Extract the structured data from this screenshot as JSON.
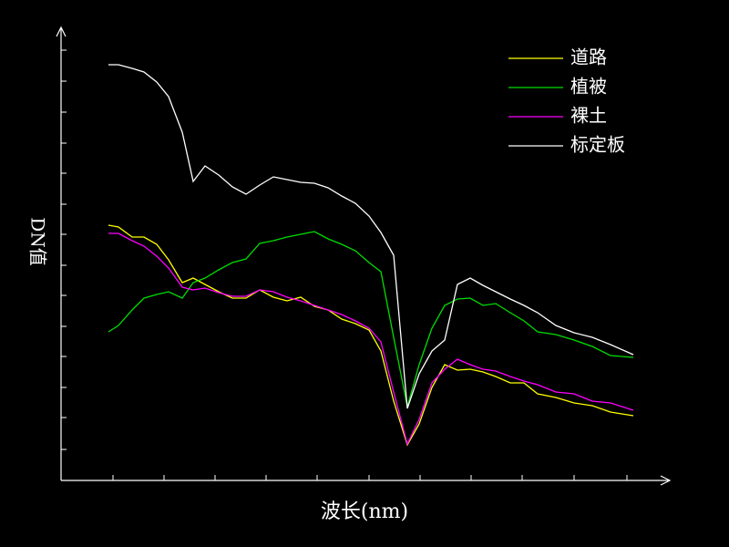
{
  "chart_data": {
    "type": "line",
    "x_label": "波长(nm)",
    "y_label": "DN值",
    "x": [
      52,
      63,
      78,
      91,
      105,
      118,
      133,
      145,
      158,
      173,
      188,
      203,
      218,
      233,
      248,
      263,
      278,
      293,
      308,
      323,
      338,
      351,
      365,
      380,
      393,
      407,
      421,
      435,
      449,
      463,
      477,
      493,
      508,
      523,
      543,
      563,
      583,
      603,
      628
    ],
    "series": [
      {
        "name": "道路",
        "color": "#ffff00",
        "values": [
          280,
          278,
          267,
          267,
          259,
          242,
          217,
          222,
          215,
          207,
          200,
          200,
          209,
          201,
          197,
          201,
          191,
          187,
          177,
          172,
          165,
          142,
          87,
          39,
          62,
          102,
          127,
          121,
          122,
          119,
          114,
          107,
          107,
          95,
          91,
          85,
          82,
          75,
          71
        ]
      },
      {
        "name": "植被",
        "color": "#00dd00",
        "values": [
          163,
          170,
          187,
          200,
          204,
          207,
          200,
          217,
          222,
          231,
          239,
          243,
          260,
          263,
          267,
          270,
          273,
          265,
          259,
          252,
          239,
          229,
          157,
          81,
          127,
          167,
          192,
          199,
          200,
          192,
          194,
          184,
          175,
          163,
          160,
          154,
          147,
          137,
          135
        ]
      },
      {
        "name": "裸土",
        "color": "#ff00ff",
        "values": [
          271,
          271,
          263,
          257,
          246,
          233,
          212,
          209,
          211,
          206,
          202,
          202,
          209,
          207,
          201,
          197,
          192,
          187,
          182,
          175,
          167,
          152,
          97,
          40,
          67,
          107,
          122,
          133,
          127,
          122,
          120,
          114,
          109,
          105,
          97,
          95,
          87,
          85,
          77
        ]
      },
      {
        "name": "标定板",
        "color": "#ffffff",
        "values": [
          456,
          456,
          452,
          448,
          437,
          421,
          382,
          328,
          345,
          335,
          322,
          314,
          324,
          333,
          330,
          327,
          326,
          321,
          312,
          304,
          290,
          272,
          247,
          79,
          117,
          142,
          154,
          215,
          222,
          214,
          207,
          199,
          192,
          184,
          170,
          162,
          157,
          149,
          138
        ]
      }
    ],
    "xlim": [
      0,
      668
    ],
    "ylim": [
      0,
      497
    ],
    "xticks": [
      57,
      113,
      169,
      225,
      281,
      338,
      394,
      450,
      506,
      563,
      621
    ],
    "yticks": [
      34,
      69,
      102,
      136,
      169,
      203,
      236,
      270,
      303,
      337,
      370,
      404,
      438,
      472
    ],
    "legend": "upper-right"
  }
}
